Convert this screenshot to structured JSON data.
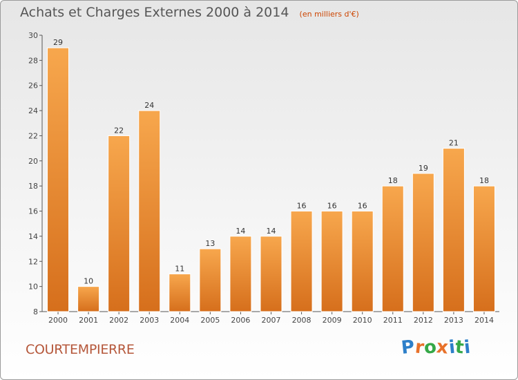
{
  "header": {
    "title": "Achats et Charges Externes 2000 à 2014",
    "unit": "(en milliers d'€)"
  },
  "footer": {
    "commune": "COURTEMPIERRE",
    "logo_text": "Proxiti"
  },
  "colors": {
    "bar_light": "#f7a74d",
    "bar_dark": "#d66f1c",
    "commune_text": "#b5573a",
    "unit_text": "#cc4400",
    "logo_letters": [
      "#2d7fc9",
      "#e8712a",
      "#35a847",
      "#e8712a",
      "#2d7fc9",
      "#35a847",
      "#2d7fc9"
    ]
  },
  "chart_data": {
    "type": "bar",
    "categories": [
      "2000",
      "2001",
      "2002",
      "2003",
      "2004",
      "2005",
      "2006",
      "2007",
      "2008",
      "2009",
      "2010",
      "2011",
      "2012",
      "2013",
      "2014"
    ],
    "values": [
      29,
      10,
      22,
      24,
      11,
      13,
      14,
      14,
      16,
      16,
      16,
      18,
      19,
      21,
      18
    ],
    "ylim": [
      8,
      30
    ],
    "yticks": [
      8,
      10,
      12,
      14,
      16,
      18,
      20,
      22,
      24,
      26,
      28,
      30
    ],
    "grid": false,
    "legend": "none"
  }
}
